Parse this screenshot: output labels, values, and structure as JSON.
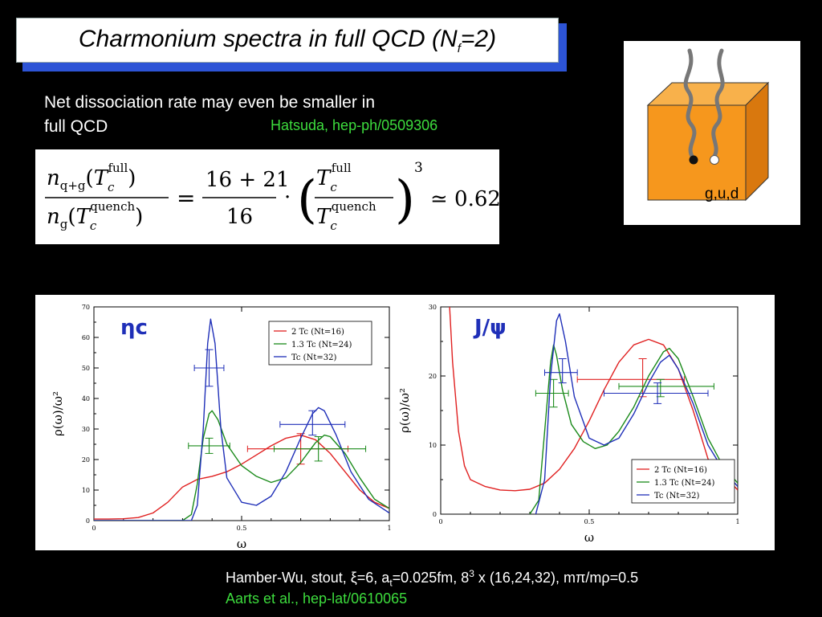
{
  "slide": {
    "title_main": "Charmonium spectra in full QCD (N",
    "title_sub": "f",
    "title_end": "=2)",
    "note": "Net dissociation rate may even be smaller in full QCD",
    "ref_hatsuda": "Hatsuda, hep-ph/0509306",
    "cube_label": "g,u,d",
    "footer_line1": {
      "a": "Hamber-Wu, stout, ξ=6, a",
      "a_sub": "t",
      "b": "=0.025fm, 8",
      "b_sup": "3",
      "c": " x (16,24,32), mπ/mρ=0.5"
    },
    "ref_aarts": "Aarts et al., hep-lat/0610065",
    "formula": {
      "lhs_num": "n",
      "lhs_num_sub": "q+g",
      "lhs_num_arg": "(T",
      "lhs_num_arg_sub": "c",
      "lhs_num_arg_sup": "full",
      "lhs_den": "n",
      "lhs_den_sub": "g",
      "lhs_den_arg_sup": "quench",
      "frac_num": "16 + 21",
      "frac_den": "16",
      "exponent": "3",
      "result": "≃ 0.62"
    }
  },
  "colors": {
    "red": "#e02020",
    "green": "#1a8a1a",
    "blue": "#1f2fb8",
    "accent_blue": "#2d54d6",
    "cube_orange": "#f6971d",
    "ref_green": "#3ddc3d"
  },
  "chart_data": [
    {
      "type": "line",
      "label": "ηc",
      "xlabel": "ω",
      "ylabel": "ρ(ω)/ω²",
      "xlim": [
        0,
        1
      ],
      "ylim": [
        0,
        70
      ],
      "xticks": [
        "0",
        "0.5",
        "1"
      ],
      "yticks": [
        "0",
        "10",
        "20",
        "30",
        "40",
        "50",
        "60",
        "70"
      ],
      "legend": "top-right",
      "series": [
        {
          "name": "2 Tc (Nt=16)",
          "color": "#e02020",
          "points": [
            [
              0,
              0.5
            ],
            [
              0.05,
              0.5
            ],
            [
              0.1,
              0.6
            ],
            [
              0.15,
              1.0
            ],
            [
              0.2,
              2.5
            ],
            [
              0.25,
              6
            ],
            [
              0.3,
              11
            ],
            [
              0.35,
              13.5
            ],
            [
              0.4,
              14.5
            ],
            [
              0.45,
              16
            ],
            [
              0.5,
              18.5
            ],
            [
              0.55,
              21.5
            ],
            [
              0.6,
              24.5
            ],
            [
              0.65,
              27
            ],
            [
              0.7,
              28
            ],
            [
              0.75,
              26.5
            ],
            [
              0.8,
              22
            ],
            [
              0.85,
              16
            ],
            [
              0.9,
              10
            ],
            [
              0.95,
              6
            ],
            [
              1.0,
              4
            ]
          ],
          "errorbar": {
            "x": 0.7,
            "y": 23.5,
            "xerr": [
              0.52,
              0.86
            ],
            "yerr": [
              18.5,
              28.5
            ]
          }
        },
        {
          "name": "1.3 Tc (Nt=24)",
          "color": "#1a8a1a",
          "points": [
            [
              0,
              0
            ],
            [
              0.3,
              0
            ],
            [
              0.33,
              2
            ],
            [
              0.35,
              12
            ],
            [
              0.37,
              27
            ],
            [
              0.39,
              35
            ],
            [
              0.4,
              36
            ],
            [
              0.42,
              33
            ],
            [
              0.45,
              25
            ],
            [
              0.5,
              18
            ],
            [
              0.55,
              14.5
            ],
            [
              0.6,
              12.5
            ],
            [
              0.65,
              14
            ],
            [
              0.7,
              19
            ],
            [
              0.75,
              25.5
            ],
            [
              0.78,
              28
            ],
            [
              0.8,
              27.5
            ],
            [
              0.85,
              22
            ],
            [
              0.9,
              14
            ],
            [
              0.95,
              7
            ],
            [
              1.0,
              4
            ]
          ],
          "errorbar": {
            "x": 0.39,
            "y": 24.5,
            "xerr": [
              0.32,
              0.46
            ],
            "yerr": [
              22,
              27
            ]
          }
        },
        {
          "name": "Tc (Nt=32)",
          "color": "#1f2fb8",
          "points": [
            [
              0,
              0
            ],
            [
              0.33,
              0
            ],
            [
              0.35,
              5
            ],
            [
              0.37,
              30
            ],
            [
              0.385,
              58
            ],
            [
              0.395,
              66
            ],
            [
              0.41,
              58
            ],
            [
              0.43,
              30
            ],
            [
              0.45,
              14
            ],
            [
              0.5,
              6
            ],
            [
              0.55,
              5
            ],
            [
              0.6,
              8
            ],
            [
              0.65,
              16
            ],
            [
              0.7,
              27
            ],
            [
              0.74,
              35
            ],
            [
              0.76,
              37
            ],
            [
              0.78,
              36
            ],
            [
              0.82,
              28
            ],
            [
              0.87,
              16
            ],
            [
              0.93,
              7
            ],
            [
              1.0,
              2.5
            ]
          ],
          "errorbar": {
            "x": 0.39,
            "y": 50,
            "xerr": [
              0.34,
              0.44
            ],
            "yerr": [
              44,
              56
            ]
          }
        }
      ],
      "extra_errorbars": [
        {
          "color": "#1a8a1a",
          "x": 0.76,
          "y": 23.5,
          "xerr": [
            0.61,
            0.92
          ],
          "yerr": [
            19.5,
            27.5
          ]
        },
        {
          "color": "#1f2fb8",
          "x": 0.74,
          "y": 31.5,
          "xerr": [
            0.63,
            0.85
          ],
          "yerr": [
            28,
            36
          ]
        }
      ]
    },
    {
      "type": "line",
      "label": "J/ψ",
      "xlabel": "ω",
      "ylabel": "ρ(ω)/ω²",
      "xlim": [
        0,
        1
      ],
      "ylim": [
        0,
        30
      ],
      "xticks": [
        "0",
        "0.5",
        "1"
      ],
      "yticks": [
        "0",
        "10",
        "20",
        "30"
      ],
      "legend": "bottom-right",
      "series": [
        {
          "name": "2 Tc (Nt=16)",
          "color": "#e02020",
          "points": [
            [
              0.03,
              30
            ],
            [
              0.04,
              22
            ],
            [
              0.06,
              12
            ],
            [
              0.08,
              7
            ],
            [
              0.1,
              5
            ],
            [
              0.15,
              4
            ],
            [
              0.2,
              3.5
            ],
            [
              0.25,
              3.4
            ],
            [
              0.3,
              3.6
            ],
            [
              0.35,
              4.5
            ],
            [
              0.4,
              6.5
            ],
            [
              0.45,
              9.5
            ],
            [
              0.5,
              13.5
            ],
            [
              0.55,
              18
            ],
            [
              0.6,
              22
            ],
            [
              0.65,
              24.5
            ],
            [
              0.7,
              25.3
            ],
            [
              0.75,
              24.5
            ],
            [
              0.8,
              21
            ],
            [
              0.85,
              15
            ],
            [
              0.9,
              8
            ],
            [
              1.0,
              3.5
            ]
          ],
          "errorbar": {
            "x": 0.68,
            "y": 19.5,
            "xerr": [
              0.46,
              0.82
            ],
            "yerr": [
              17,
              22.5
            ]
          }
        },
        {
          "name": "1.3 Tc (Nt=24)",
          "color": "#1a8a1a",
          "points": [
            [
              0.3,
              0
            ],
            [
              0.33,
              2
            ],
            [
              0.35,
              12
            ],
            [
              0.37,
              22
            ],
            [
              0.38,
              24.5
            ],
            [
              0.39,
              23
            ],
            [
              0.41,
              18
            ],
            [
              0.44,
              13
            ],
            [
              0.48,
              10.5
            ],
            [
              0.52,
              9.5
            ],
            [
              0.56,
              10
            ],
            [
              0.6,
              12
            ],
            [
              0.65,
              15.5
            ],
            [
              0.7,
              20
            ],
            [
              0.75,
              23.5
            ],
            [
              0.77,
              24
            ],
            [
              0.8,
              22.5
            ],
            [
              0.85,
              17
            ],
            [
              0.9,
              11
            ],
            [
              0.95,
              7
            ],
            [
              1.0,
              4.5
            ]
          ],
          "errorbar": {
            "x": 0.38,
            "y": 17.5,
            "xerr": [
              0.32,
              0.43
            ],
            "yerr": [
              15.5,
              19.5
            ]
          }
        },
        {
          "name": "Tc (Nt=32)",
          "color": "#1f2fb8",
          "points": [
            [
              0.32,
              0
            ],
            [
              0.35,
              5
            ],
            [
              0.37,
              20
            ],
            [
              0.39,
              28
            ],
            [
              0.4,
              29
            ],
            [
              0.42,
              25
            ],
            [
              0.45,
              17
            ],
            [
              0.5,
              11
            ],
            [
              0.55,
              10
            ],
            [
              0.6,
              11
            ],
            [
              0.65,
              14.5
            ],
            [
              0.7,
              19
            ],
            [
              0.74,
              22
            ],
            [
              0.77,
              23
            ],
            [
              0.8,
              21
            ],
            [
              0.85,
              16
            ],
            [
              0.9,
              10
            ],
            [
              0.95,
              6.5
            ],
            [
              1.0,
              4
            ]
          ],
          "errorbar": {
            "x": 0.41,
            "y": 20.5,
            "xerr": [
              0.35,
              0.46
            ],
            "yerr": [
              19,
              22.5
            ]
          }
        }
      ],
      "extra_errorbars": [
        {
          "color": "#1a8a1a",
          "x": 0.74,
          "y": 18.5,
          "xerr": [
            0.6,
            0.92
          ],
          "yerr": [
            17,
            19.5
          ]
        },
        {
          "color": "#1f2fb8",
          "x": 0.73,
          "y": 17.5,
          "xerr": [
            0.55,
            0.9
          ],
          "yerr": [
            16,
            19
          ]
        }
      ]
    }
  ]
}
